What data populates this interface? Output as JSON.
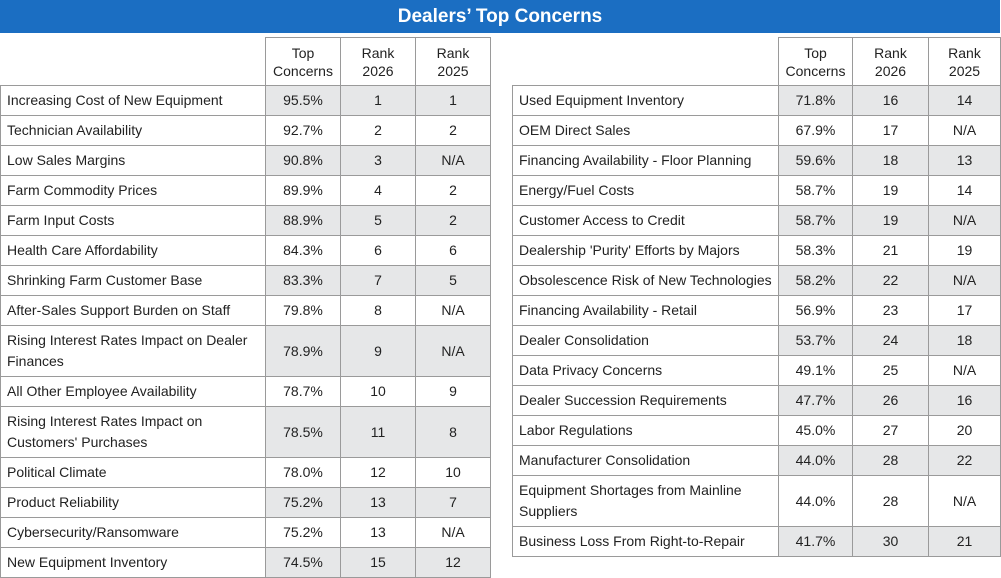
{
  "title": "Dealers’ Top Concerns",
  "left": {
    "header": [
      "Top\nConcerns",
      "Rank\n2026",
      "Rank\n2025"
    ],
    "rows": [
      [
        "Increasing Cost of New Equipment",
        "95.5%",
        "1",
        "1"
      ],
      [
        "Technician Availability",
        "92.7%",
        "2",
        "2"
      ],
      [
        "Low Sales Margins",
        "90.8%",
        "3",
        "N/A"
      ],
      [
        "Farm Commodity Prices",
        "89.9%",
        "4",
        "2"
      ],
      [
        "Farm Input Costs",
        "88.9%",
        "5",
        "2"
      ],
      [
        "Health Care Affordability",
        "84.3%",
        "6",
        "6"
      ],
      [
        "Shrinking Farm Customer Base",
        "83.3%",
        "7",
        "5"
      ],
      [
        "After-Sales Support Burden on Staff",
        "79.8%",
        "8",
        "N/A"
      ],
      [
        "Rising Interest Rates Impact on Dealer Finances",
        "78.9%",
        "9",
        "N/A"
      ],
      [
        "All Other Employee Availability",
        "78.7%",
        "10",
        "9"
      ],
      [
        "Rising Interest Rates Impact on Customers' Purchases",
        "78.5%",
        "11",
        "8"
      ],
      [
        "Political Climate",
        "78.0%",
        "12",
        "10"
      ],
      [
        "Product Reliability",
        "75.2%",
        "13",
        "7"
      ],
      [
        "Cybersecurity/Ransomware",
        "75.2%",
        "13",
        "N/A"
      ],
      [
        "New Equipment Inventory",
        "74.5%",
        "15",
        "12"
      ]
    ]
  },
  "right": {
    "header": [
      "Top\nConcerns",
      "Rank\n2026",
      "Rank\n2025"
    ],
    "rows": [
      [
        "Used Equipment Inventory",
        "71.8%",
        "16",
        "14"
      ],
      [
        "OEM Direct Sales",
        "67.9%",
        "17",
        "N/A"
      ],
      [
        "Financing Availability - Floor Planning",
        "59.6%",
        "18",
        "13"
      ],
      [
        "Energy/Fuel Costs",
        "58.7%",
        "19",
        "14"
      ],
      [
        "Customer Access to Credit",
        "58.7%",
        "19",
        "N/A"
      ],
      [
        "Dealership 'Purity' Efforts by Majors",
        "58.3%",
        "21",
        "19"
      ],
      [
        "Obsolescence Risk of New Technologies",
        "58.2%",
        "22",
        "N/A"
      ],
      [
        "Financing Availability - Retail",
        "56.9%",
        "23",
        "17"
      ],
      [
        "Dealer Consolidation",
        "53.7%",
        "24",
        "18"
      ],
      [
        "Data Privacy Concerns",
        "49.1%",
        "25",
        "N/A"
      ],
      [
        "Dealer Succession Requirements",
        "47.7%",
        "26",
        "16"
      ],
      [
        "Labor Regulations",
        "45.0%",
        "27",
        "20"
      ],
      [
        "Manufacturer Consolidation",
        "44.0%",
        "28",
        "22"
      ],
      [
        "Equipment Shortages from Mainline Suppliers",
        "44.0%",
        "28",
        "N/A"
      ],
      [
        "Business Loss From Right-to-Repair",
        "41.7%",
        "30",
        "21"
      ]
    ]
  }
}
